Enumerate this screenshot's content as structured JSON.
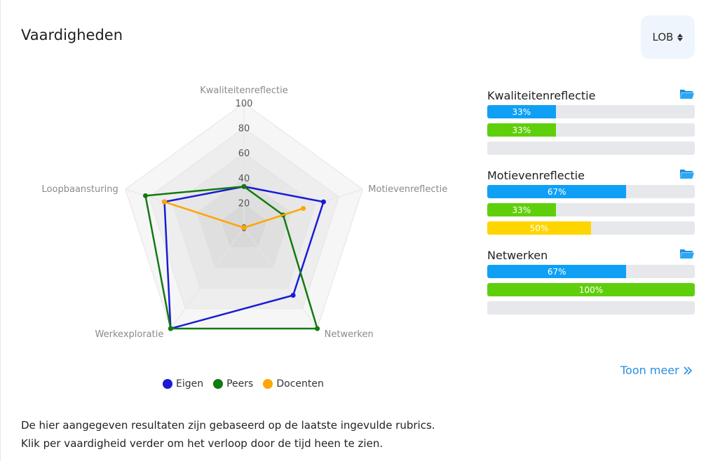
{
  "header": {
    "title": "Vaardigheden",
    "select_value": "LOB"
  },
  "colors": {
    "eigen": "#1b1bd6",
    "peers": "#117a11",
    "docenten": "#ffa500",
    "bar_blue": "#0fa0f5",
    "bar_green": "#5fcf0c",
    "bar_yellow": "#ffd500",
    "link": "#2a8fe0"
  },
  "chart_data": {
    "type": "radar",
    "axes": [
      "Kwaliteitenreflectie",
      "Motievenreflectie",
      "Netwerken",
      "Werkexploratie",
      "Loopbaansturing"
    ],
    "range": [
      0,
      100
    ],
    "ticks": [
      "0",
      "20",
      "40",
      "60",
      "80",
      "100"
    ],
    "series": [
      {
        "name": "Eigen",
        "color": "#1b1bd6",
        "values": [
          33,
          67,
          67,
          100,
          67
        ]
      },
      {
        "name": "Peers",
        "color": "#117a11",
        "values": [
          33,
          33,
          100,
          100,
          83
        ]
      },
      {
        "name": "Docenten",
        "color": "#ffa500",
        "values": [
          0,
          50,
          0,
          0,
          67
        ]
      }
    ],
    "legend": "bottom"
  },
  "legend": [
    {
      "label": "Eigen",
      "color": "#1b1bd6"
    },
    {
      "label": "Peers",
      "color": "#117a11"
    },
    {
      "label": "Docenten",
      "color": "#ffa500"
    }
  ],
  "skills": [
    {
      "name": "Kwaliteitenreflectie",
      "bars": [
        {
          "value": 33,
          "label": "33%",
          "color": "#0fa0f5"
        },
        {
          "value": 33,
          "label": "33%",
          "color": "#5fcf0c"
        },
        {
          "value": 0,
          "label": "",
          "color": "#ffd500"
        }
      ]
    },
    {
      "name": "Motievenreflectie",
      "bars": [
        {
          "value": 67,
          "label": "67%",
          "color": "#0fa0f5"
        },
        {
          "value": 33,
          "label": "33%",
          "color": "#5fcf0c"
        },
        {
          "value": 50,
          "label": "50%",
          "color": "#ffd500"
        }
      ]
    },
    {
      "name": "Netwerken",
      "bars": [
        {
          "value": 67,
          "label": "67%",
          "color": "#0fa0f5"
        },
        {
          "value": 100,
          "label": "100%",
          "color": "#5fcf0c"
        },
        {
          "value": 0,
          "label": "",
          "color": "#ffd500"
        }
      ]
    }
  ],
  "more_link": "Toon meer",
  "description": [
    "De hier aangegeven resultaten zijn gebaseerd op de laatste ingevulde rubrics.",
    "Klik per vaardigheid verder om het verloop door de tijd heen te zien."
  ]
}
